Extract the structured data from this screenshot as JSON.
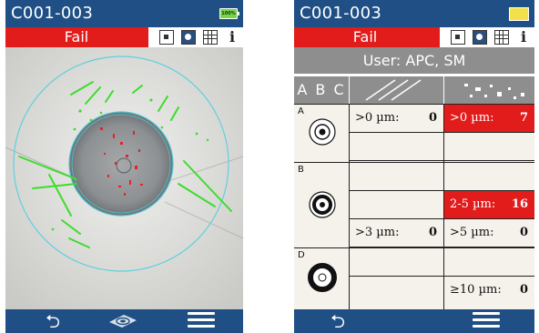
{
  "left": {
    "title": "C001-003",
    "battery": "100%",
    "status": "Fail",
    "toolbar": {
      "info_label": "i"
    },
    "bottom": {
      "back": "⮌"
    }
  },
  "right": {
    "title": "C001-003",
    "status": "Fail",
    "toolbar": {
      "info_label": "i"
    },
    "user": "User: APC, SM",
    "header": {
      "zones_label": "A B C"
    },
    "zones": [
      {
        "letter": "A",
        "rows": [
          {
            "scratch_label": ">0 µm:",
            "scratch_value": "0",
            "defect_label": ">0 µm:",
            "defect_value": "7",
            "defect_fail": true
          },
          {
            "scratch_label": "",
            "scratch_value": "",
            "defect_label": "",
            "defect_value": "",
            "defect_fail": false
          }
        ]
      },
      {
        "letter": "B",
        "rows": [
          {
            "scratch_label": "",
            "scratch_value": "",
            "defect_label": "",
            "defect_value": "",
            "defect_fail": false
          },
          {
            "scratch_label": "",
            "scratch_value": "",
            "defect_label": "2-5 µm:",
            "defect_value": "16",
            "defect_fail": true
          },
          {
            "scratch_label": ">3 µm:",
            "scratch_value": "0",
            "defect_label": ">5 µm:",
            "defect_value": "0",
            "defect_fail": false
          }
        ]
      },
      {
        "letter": "D",
        "rows": [
          {
            "scratch_label": "",
            "scratch_value": "",
            "defect_label": "",
            "defect_value": "",
            "defect_fail": false
          },
          {
            "scratch_label": "",
            "scratch_value": "",
            "defect_label": "≥10 µm:",
            "defect_value": "0",
            "defect_fail": false
          }
        ]
      }
    ],
    "bottom": {
      "back": "⮌"
    }
  },
  "colors": {
    "header_blue": "#1f4f85",
    "fail_red": "#e21b1b",
    "gray": "#8e8e8e",
    "scratch_green": "#3ddc2e",
    "defect_red": "#e0242a"
  }
}
